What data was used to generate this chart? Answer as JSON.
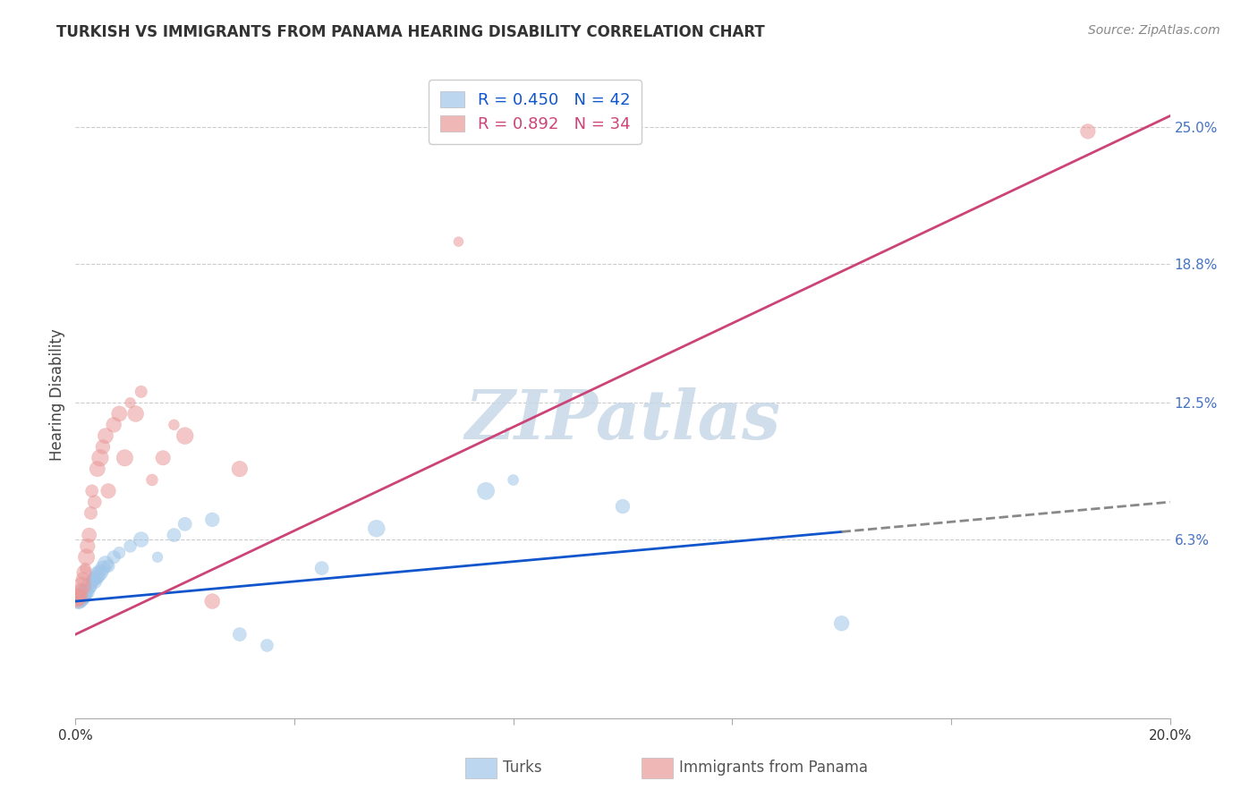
{
  "title": "TURKISH VS IMMIGRANTS FROM PANAMA HEARING DISABILITY CORRELATION CHART",
  "source": "Source: ZipAtlas.com",
  "ylabel_label": "Hearing Disability",
  "ylabel_ticks": [
    0.0,
    6.3,
    12.5,
    18.8,
    25.0
  ],
  "ylabel_tick_labels": [
    "",
    "6.3%",
    "12.5%",
    "18.8%",
    "25.0%"
  ],
  "xmin": 0.0,
  "xmax": 20.0,
  "ymin": -1.8,
  "ymax": 27.5,
  "turks_color": "#9fc5e8",
  "panama_color": "#ea9999",
  "turks_line_color": "#1155cc",
  "panama_line_color": "#cc4477",
  "legend_turks_R": 0.45,
  "legend_turks_N": 42,
  "legend_panama_R": 0.892,
  "legend_panama_N": 34,
  "watermark": "ZIPatlas",
  "watermark_color": "#c8d8e8",
  "background_color": "#ffffff",
  "turks_x": [
    0.05,
    0.06,
    0.07,
    0.08,
    0.09,
    0.1,
    0.11,
    0.12,
    0.13,
    0.14,
    0.15,
    0.17,
    0.18,
    0.2,
    0.22,
    0.25,
    0.27,
    0.3,
    0.33,
    0.35,
    0.38,
    0.4,
    0.45,
    0.5,
    0.55,
    0.6,
    0.7,
    0.8,
    1.0,
    1.2,
    1.5,
    1.8,
    2.0,
    2.5,
    3.0,
    3.5,
    4.5,
    5.5,
    7.5,
    10.0,
    14.0,
    8.0
  ],
  "turks_y": [
    3.5,
    3.6,
    3.7,
    3.5,
    3.6,
    3.8,
    3.7,
    3.9,
    3.8,
    3.6,
    3.7,
    3.9,
    3.8,
    4.0,
    3.9,
    4.2,
    4.1,
    4.3,
    4.5,
    4.4,
    4.6,
    4.7,
    4.8,
    5.0,
    5.2,
    5.1,
    5.5,
    5.7,
    6.0,
    6.3,
    5.5,
    6.5,
    7.0,
    7.2,
    2.0,
    1.5,
    5.0,
    6.8,
    8.5,
    7.8,
    2.5,
    9.0
  ],
  "panama_x": [
    0.03,
    0.05,
    0.07,
    0.08,
    0.1,
    0.12,
    0.14,
    0.16,
    0.18,
    0.2,
    0.22,
    0.25,
    0.28,
    0.3,
    0.35,
    0.4,
    0.45,
    0.5,
    0.55,
    0.6,
    0.7,
    0.8,
    0.9,
    1.0,
    1.1,
    1.2,
    1.4,
    1.6,
    1.8,
    2.0,
    2.5,
    3.0,
    7.0,
    18.5
  ],
  "panama_y": [
    3.5,
    3.6,
    3.7,
    3.8,
    4.0,
    4.2,
    4.5,
    4.8,
    5.0,
    5.5,
    6.0,
    6.5,
    7.5,
    8.5,
    8.0,
    9.5,
    10.0,
    10.5,
    11.0,
    8.5,
    11.5,
    12.0,
    10.0,
    12.5,
    12.0,
    13.0,
    9.0,
    10.0,
    11.5,
    11.0,
    3.5,
    9.5,
    19.8,
    24.8
  ],
  "turks_line_x0": 0.0,
  "turks_line_x1": 20.0,
  "turks_line_y0": 3.5,
  "turks_line_y1": 8.0,
  "turks_solid_end": 14.0,
  "panama_line_x0": 0.0,
  "panama_line_x1": 20.0,
  "panama_line_y0": 2.0,
  "panama_line_y1": 25.5
}
